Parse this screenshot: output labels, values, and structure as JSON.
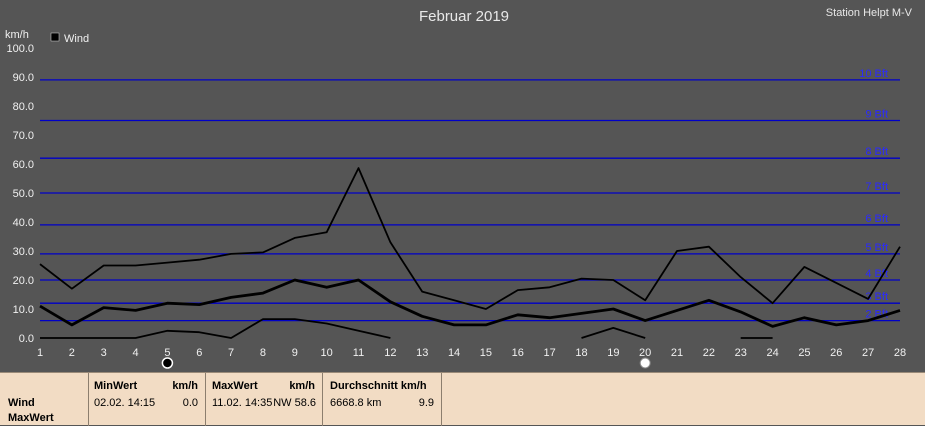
{
  "header": {
    "title": "Februar 2019",
    "station": "Station Helpt M-V"
  },
  "chart_data": {
    "type": "line",
    "title": "Februar 2019",
    "ylabel": "km/h",
    "ylim": [
      0,
      100
    ],
    "yticks": [
      "0.0",
      "10.0",
      "20.0",
      "30.0",
      "40.0",
      "50.0",
      "60.0",
      "70.0",
      "80.0",
      "90.0",
      "100.0"
    ],
    "categories": [
      "1",
      "2",
      "3",
      "4",
      "5",
      "6",
      "7",
      "8",
      "9",
      "10",
      "11",
      "12",
      "13",
      "14",
      "15",
      "16",
      "17",
      "18",
      "19",
      "20",
      "21",
      "22",
      "23",
      "24",
      "25",
      "26",
      "27",
      "28"
    ],
    "legend": "Wind",
    "beaufort": [
      {
        "label": "2 Bft",
        "value": 6
      },
      {
        "label": "3 Bft",
        "value": 12
      },
      {
        "label": "4 Bft",
        "value": 20
      },
      {
        "label": "5 Bft",
        "value": 29
      },
      {
        "label": "6 Bft",
        "value": 39
      },
      {
        "label": "7 Bft",
        "value": 50
      },
      {
        "label": "8 Bft",
        "value": 62
      },
      {
        "label": "9 Bft",
        "value": 75
      },
      {
        "label": "10 Bft",
        "value": 89
      }
    ],
    "series": [
      {
        "role": "max",
        "values": [
          25.5,
          17,
          25,
          25,
          26,
          27,
          29,
          29.5,
          34.5,
          36.5,
          58.6,
          33,
          16,
          13,
          10,
          16.5,
          17.5,
          20.5,
          20,
          13,
          30,
          31.5,
          21,
          12,
          24.5,
          19,
          13.5,
          31.5
        ]
      },
      {
        "role": "avg",
        "values": [
          11,
          4.5,
          10.5,
          9.5,
          12,
          11.5,
          14,
          15.5,
          20,
          17.5,
          20,
          12.5,
          7.5,
          4.5,
          4.5,
          8,
          7,
          8.5,
          10,
          6,
          9.5,
          13,
          9,
          4,
          7,
          4.5,
          6,
          9.5
        ]
      },
      {
        "role": "min",
        "values": [
          0,
          0,
          0,
          0,
          2.5,
          2,
          0,
          6.5,
          6.5,
          5,
          2.5,
          0,
          null,
          null,
          null,
          null,
          null,
          0,
          3.5,
          0,
          null,
          null,
          0,
          0,
          null,
          null,
          null,
          null
        ]
      }
    ],
    "moon_markers": [
      {
        "day": "5",
        "phase": "new-moon"
      },
      {
        "day": "20",
        "phase": "full-moon"
      }
    ]
  },
  "summary": {
    "row_labels": [
      "Wind",
      "MaxWert"
    ],
    "min": {
      "header": "MinWert",
      "unit": "km/h",
      "date": "02.02.  14:15",
      "value": "0.0"
    },
    "max": {
      "header": "MaxWert",
      "unit": "km/h",
      "date": "11.02.  14:35",
      "dir_value": "NW 58.6"
    },
    "avg": {
      "header": "Durchschnitt km/h",
      "distance": "6668.8 km",
      "value": "9.9"
    }
  },
  "colors": {
    "background": "#555555",
    "beaufort_lines": "#0000c8",
    "series": "#000000",
    "panel": "#f2dcc4"
  }
}
